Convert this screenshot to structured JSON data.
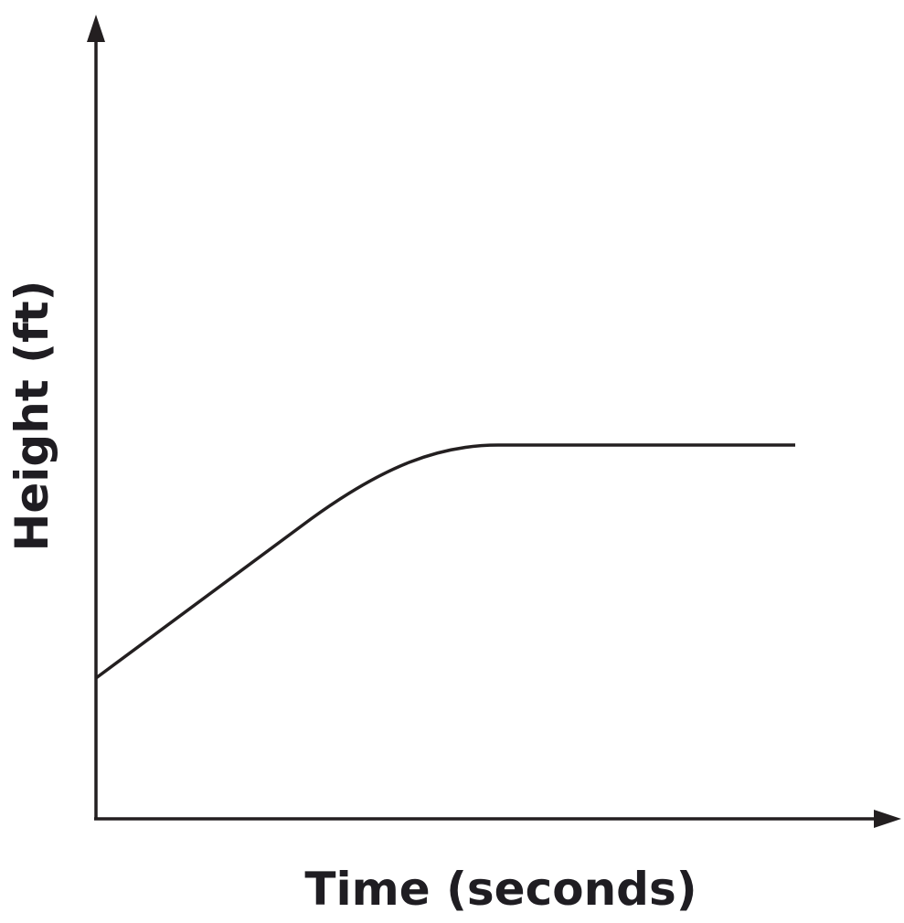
{
  "axes": {
    "x_label": "Time (seconds)",
    "y_label": "Height (ft)"
  }
}
